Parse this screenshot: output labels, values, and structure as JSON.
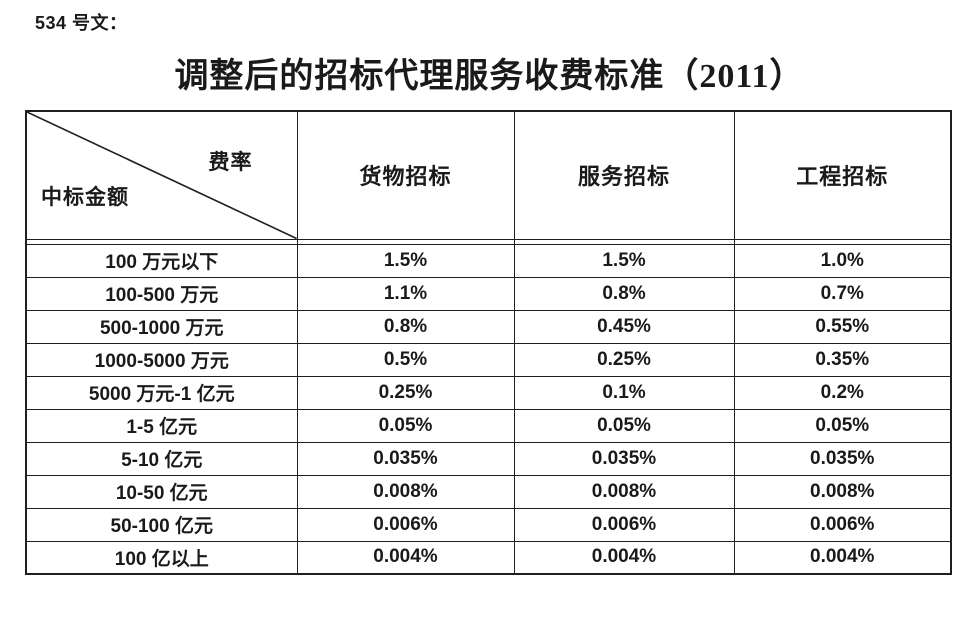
{
  "doc_label": "534 号文：",
  "title": "调整后的招标代理服务收费标准（2011）",
  "table": {
    "corner": {
      "top_right": "费率",
      "bottom_left": "中标金额"
    },
    "columns": [
      "货物招标",
      "服务招标",
      "工程招标"
    ],
    "rows": [
      {
        "label": "100 万元以下",
        "values": [
          "1.5%",
          "1.5%",
          "1.0%"
        ]
      },
      {
        "label": "100-500 万元",
        "values": [
          "1.1%",
          "0.8%",
          "0.7%"
        ]
      },
      {
        "label": "500-1000 万元",
        "values": [
          "0.8%",
          "0.45%",
          "0.55%"
        ]
      },
      {
        "label": "1000-5000 万元",
        "values": [
          "0.5%",
          "0.25%",
          "0.35%"
        ]
      },
      {
        "label": "5000 万元-1 亿元",
        "values": [
          "0.25%",
          "0.1%",
          "0.2%"
        ]
      },
      {
        "label": "1-5 亿元",
        "values": [
          "0.05%",
          "0.05%",
          "0.05%"
        ]
      },
      {
        "label": "5-10 亿元",
        "values": [
          "0.035%",
          "0.035%",
          "0.035%"
        ]
      },
      {
        "label": "10-50 亿元",
        "values": [
          "0.008%",
          "0.008%",
          "0.008%"
        ]
      },
      {
        "label": "50-100 亿元",
        "values": [
          "0.006%",
          "0.006%",
          "0.006%"
        ]
      },
      {
        "label": "100 亿以上",
        "values": [
          "0.004%",
          "0.004%",
          "0.004%"
        ]
      }
    ]
  },
  "colors": {
    "text": "#1a1a1a",
    "border": "#1f1f1f",
    "background": "#ffffff"
  }
}
